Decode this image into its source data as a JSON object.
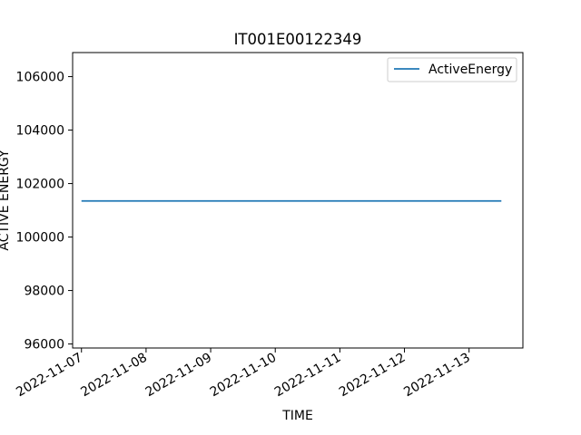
{
  "chart_data": {
    "type": "line",
    "title": "IT001E00122349",
    "xlabel": "TIME",
    "ylabel": "ACTIVE ENERGY",
    "x_ticks": [
      "2022-11-07",
      "2022-11-08",
      "2022-11-09",
      "2022-11-10",
      "2022-11-11",
      "2022-11-12",
      "2022-11-13"
    ],
    "y_ticks": [
      "96000",
      "98000",
      "100000",
      "102000",
      "104000",
      "106000"
    ],
    "xlim": [
      "2022-11-06T20:43",
      "2022-11-13T20:00"
    ],
    "ylim": [
      95850,
      106900
    ],
    "grid": false,
    "legend": "upper-right",
    "series": [
      {
        "name": "ActiveEnergy",
        "color": "#1f77b4",
        "x": [
          "2022-11-07T00:00",
          "2022-11-13T12:00"
        ],
        "y": [
          101350,
          101350
        ]
      }
    ]
  }
}
